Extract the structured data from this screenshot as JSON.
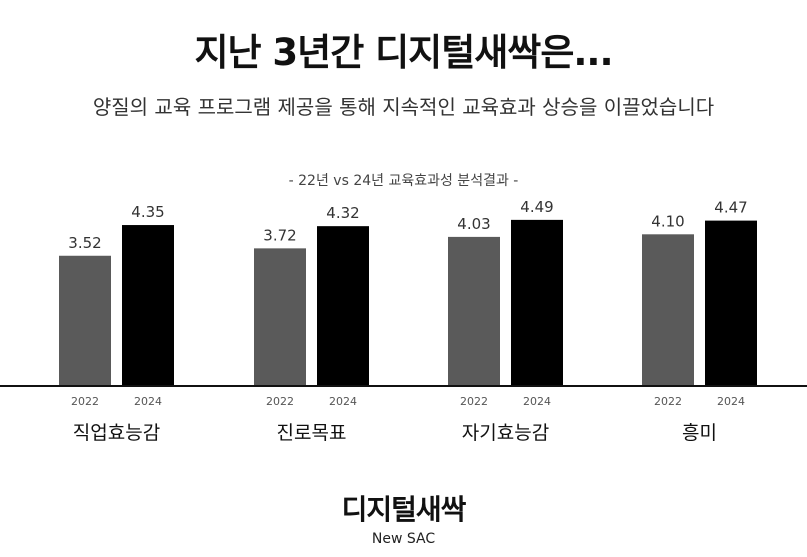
{
  "header": {
    "title": "지난 3년간 디지털새싹은...",
    "subtitle": "양질의 교육 프로그램 제공을 통해 지속적인 교육효과 상승을 이끌었습니다"
  },
  "chart_data": {
    "type": "bar",
    "title": "- 22년 vs 24년 교육효과성 분석결과 -",
    "categories": [
      "직업효능감",
      "진로목표",
      "자기효능감",
      "흥미"
    ],
    "series": [
      {
        "name": "2022",
        "values": [
          3.52,
          3.72,
          4.03,
          4.1
        ]
      },
      {
        "name": "2024",
        "values": [
          4.35,
          4.32,
          4.49,
          4.47
        ]
      }
    ],
    "value_labels": [
      [
        "3.52",
        "4.35"
      ],
      [
        "3.72",
        "4.32"
      ],
      [
        "4.03",
        "4.49"
      ],
      [
        "4.10",
        "4.47"
      ]
    ],
    "colors": {
      "2022": "#5a5a5a",
      "2024": "#000000"
    },
    "xlabel": "",
    "ylabel": "",
    "grid": false,
    "legend": "none"
  },
  "brand": {
    "name": "디지털새싹",
    "sub": "New SAC"
  }
}
